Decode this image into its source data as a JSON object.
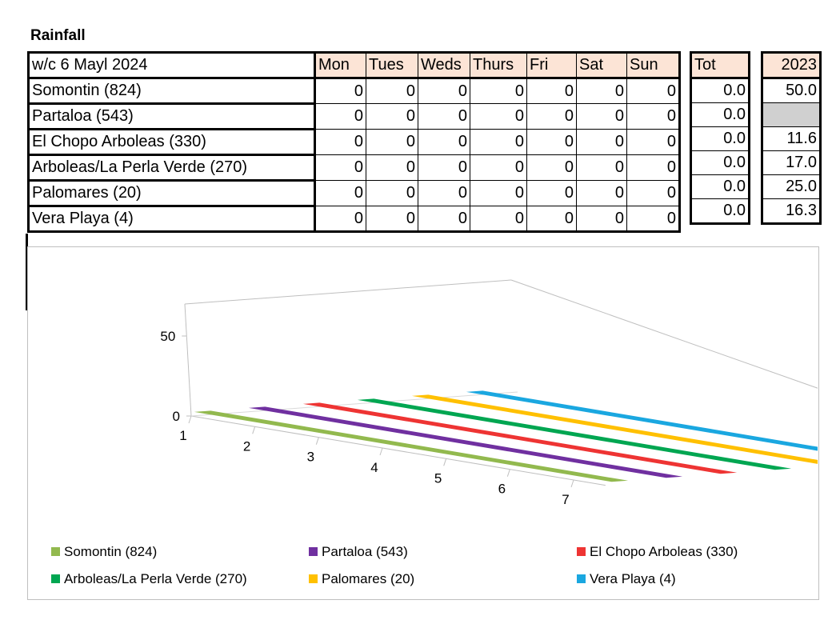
{
  "title": "Rainfall",
  "table": {
    "week_label": "w/c  6 Mayl 2024",
    "days": [
      "Mon",
      "Tues",
      "Weds",
      "Thurs",
      "Fri",
      "Sat",
      "Sun"
    ],
    "total_label": "Tot",
    "prev_year_label": "2023",
    "rows": [
      {
        "name": "Somontin (824)",
        "values": [
          "0",
          "0",
          "0",
          "0",
          "0",
          "0",
          "0"
        ],
        "total": "0.0",
        "prev": "50.0"
      },
      {
        "name": "Partaloa (543)",
        "values": [
          "0",
          "0",
          "0",
          "0",
          "0",
          "0",
          "0"
        ],
        "total": "0.0",
        "prev": ""
      },
      {
        "name": "El Chopo Arboleas (330)",
        "values": [
          "0",
          "0",
          "0",
          "0",
          "0",
          "0",
          "0"
        ],
        "total": "0.0",
        "prev": "11.6"
      },
      {
        "name": "Arboleas/La Perla Verde (270)",
        "values": [
          "0",
          "0",
          "0",
          "0",
          "0",
          "0",
          "0"
        ],
        "total": "0.0",
        "prev": "17.0"
      },
      {
        "name": "Palomares (20)",
        "values": [
          "0",
          "0",
          "0",
          "0",
          "0",
          "0",
          "0"
        ],
        "total": "0.0",
        "prev": "25.0"
      },
      {
        "name": "Vera Playa (4)",
        "values": [
          "0",
          "0",
          "0",
          "0",
          "0",
          "0",
          "0"
        ],
        "total": "0.0",
        "prev": "16.3"
      }
    ]
  },
  "chart_data": {
    "type": "area",
    "categories": [
      "1",
      "2",
      "3",
      "4",
      "5",
      "6",
      "7"
    ],
    "y_ticks": [
      "0",
      "50"
    ],
    "ylim": [
      0,
      70
    ],
    "legend_position": "bottom",
    "series": [
      {
        "name": "Somontin (824)",
        "values": [
          0,
          0,
          0,
          0,
          0,
          0,
          0
        ],
        "color": "#92b94e"
      },
      {
        "name": "Partaloa (543)",
        "values": [
          0,
          0,
          0,
          0,
          0,
          0,
          0
        ],
        "color": "#7030a0"
      },
      {
        "name": "El Chopo Arboleas (330)",
        "values": [
          0,
          0,
          0,
          0,
          0,
          0,
          0
        ],
        "color": "#ee3433"
      },
      {
        "name": "Arboleas/La Perla Verde (270)",
        "values": [
          0,
          0,
          0,
          0,
          0,
          0,
          0
        ],
        "color": "#00a651"
      },
      {
        "name": "Palomares (20)",
        "values": [
          0,
          0,
          0,
          0,
          0,
          0,
          0
        ],
        "color": "#ffc000"
      },
      {
        "name": "Vera Playa (4)",
        "values": [
          0,
          0,
          0,
          0,
          0,
          0,
          0
        ],
        "color": "#1aa7e0"
      }
    ]
  }
}
